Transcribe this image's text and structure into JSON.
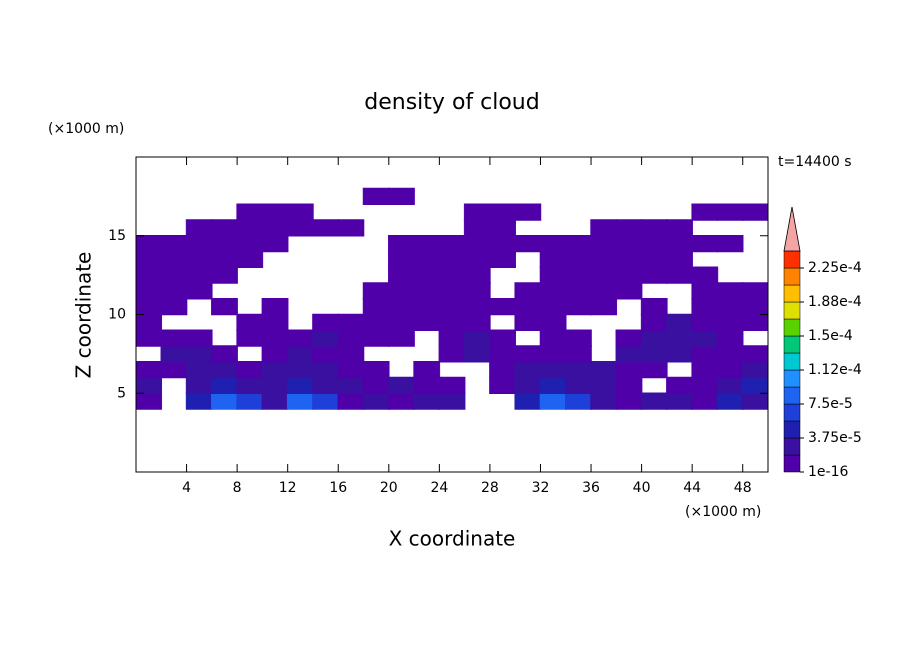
{
  "chart_data": {
    "type": "contour",
    "title": "density of cloud",
    "x_label": "X coordinate",
    "y_label": "Z coordinate",
    "x_unit": "(×1000 m)",
    "y_unit": "(×1000 m)",
    "time_label": "t=14400 s",
    "xlim": [
      0,
      50
    ],
    "ylim": [
      0,
      20
    ],
    "xticks": [
      4,
      8,
      12,
      16,
      20,
      24,
      28,
      32,
      36,
      40,
      44,
      48
    ],
    "yticks": [
      5,
      10,
      15
    ],
    "x": [
      1,
      3,
      5,
      7,
      9,
      11,
      13,
      15,
      17,
      19,
      21,
      23,
      25,
      27,
      29,
      31,
      33,
      35,
      37,
      39,
      41,
      43,
      45,
      47,
      49
    ],
    "z": [
      4.5,
      5.5,
      6.5,
      7.5,
      8.5,
      9.5,
      10.5,
      11.5,
      12.5,
      13.5,
      14.5,
      15.5,
      16.5,
      17.5
    ],
    "values": [
      [
        1e-05,
        null,
        4.5e-05,
        8.5e-05,
        6.5e-05,
        2.5e-05,
        8.5e-05,
        6.5e-05,
        1e-05,
        2.5e-05,
        1e-05,
        2.5e-05,
        2.5e-05,
        null,
        null,
        4.5e-05,
        8.5e-05,
        6.5e-05,
        2.5e-05,
        1e-05,
        2.5e-05,
        2.5e-05,
        1e-05,
        4.5e-05,
        2.5e-05
      ],
      [
        2.5e-05,
        null,
        2.5e-05,
        4.5e-05,
        2.5e-05,
        2.5e-05,
        4.5e-05,
        2.5e-05,
        2.5e-05,
        1e-05,
        2.5e-05,
        1e-05,
        1e-05,
        null,
        1e-05,
        2.5e-05,
        4.5e-05,
        2.5e-05,
        2.5e-05,
        1e-05,
        null,
        1e-05,
        1e-05,
        2.5e-05,
        4.5e-05
      ],
      [
        1e-05,
        1e-05,
        2.5e-05,
        2.5e-05,
        1e-05,
        2.5e-05,
        2.5e-05,
        2.5e-05,
        1e-05,
        1e-05,
        null,
        1e-05,
        null,
        null,
        1e-05,
        2.5e-05,
        2.5e-05,
        2.5e-05,
        2.5e-05,
        1e-05,
        1e-05,
        null,
        1e-05,
        1e-05,
        2.5e-05
      ],
      [
        null,
        2.5e-05,
        2.5e-05,
        1e-05,
        null,
        1e-05,
        2.5e-05,
        1e-05,
        1e-05,
        null,
        null,
        null,
        1e-05,
        2.5e-05,
        1e-05,
        1e-05,
        1e-05,
        1e-05,
        null,
        2.5e-05,
        2.5e-05,
        2.5e-05,
        1e-05,
        1e-05,
        1e-05
      ],
      [
        1e-05,
        1e-05,
        1e-05,
        null,
        1e-05,
        1e-05,
        1e-05,
        2.5e-05,
        1e-05,
        1e-05,
        1e-05,
        null,
        1e-05,
        2.5e-05,
        1e-05,
        null,
        1e-05,
        1e-05,
        null,
        1e-05,
        2.5e-05,
        2.5e-05,
        2.5e-05,
        1e-05,
        null
      ],
      [
        1e-05,
        null,
        null,
        null,
        1e-05,
        1e-05,
        null,
        1e-05,
        1e-05,
        1e-05,
        1e-05,
        1e-05,
        1e-05,
        1e-05,
        null,
        1e-05,
        1e-05,
        null,
        null,
        null,
        1e-05,
        2.5e-05,
        1e-05,
        1e-05,
        1e-05
      ],
      [
        1e-05,
        1e-05,
        null,
        1e-05,
        null,
        1e-05,
        null,
        null,
        null,
        1e-05,
        1e-05,
        1e-05,
        1e-05,
        1e-05,
        1e-05,
        1e-05,
        1e-05,
        1e-05,
        1e-05,
        null,
        1e-05,
        null,
        1e-05,
        1e-05,
        1e-05
      ],
      [
        1e-05,
        1e-05,
        1e-05,
        null,
        null,
        null,
        null,
        null,
        null,
        1e-05,
        1e-05,
        1e-05,
        1e-05,
        1e-05,
        null,
        1e-05,
        1e-05,
        1e-05,
        1e-05,
        1e-05,
        null,
        null,
        1e-05,
        1e-05,
        1e-05
      ],
      [
        1e-05,
        1e-05,
        1e-05,
        1e-05,
        null,
        null,
        null,
        null,
        null,
        null,
        1e-05,
        1e-05,
        1e-05,
        1e-05,
        null,
        null,
        1e-05,
        1e-05,
        1e-05,
        1e-05,
        1e-05,
        1e-05,
        1e-05,
        null,
        null
      ],
      [
        1e-05,
        1e-05,
        1e-05,
        1e-05,
        1e-05,
        null,
        null,
        null,
        null,
        null,
        1e-05,
        1e-05,
        1e-05,
        1e-05,
        1e-05,
        null,
        1e-05,
        1e-05,
        1e-05,
        1e-05,
        1e-05,
        1e-05,
        null,
        null,
        null
      ],
      [
        1e-05,
        1e-05,
        1e-05,
        1e-05,
        1e-05,
        1e-05,
        null,
        null,
        null,
        null,
        1e-05,
        1e-05,
        1e-05,
        1e-05,
        1e-05,
        1e-05,
        1e-05,
        1e-05,
        1e-05,
        1e-05,
        1e-05,
        1e-05,
        1e-05,
        1e-05,
        null
      ],
      [
        null,
        null,
        1e-05,
        1e-05,
        1e-05,
        1e-05,
        1e-05,
        1e-05,
        1e-05,
        null,
        null,
        null,
        null,
        1e-05,
        1e-05,
        null,
        null,
        null,
        1e-05,
        1e-05,
        1e-05,
        1e-05,
        null,
        null,
        null
      ],
      [
        null,
        null,
        null,
        null,
        1e-05,
        1e-05,
        1e-05,
        null,
        null,
        null,
        null,
        null,
        null,
        1e-05,
        1e-05,
        1e-05,
        null,
        null,
        null,
        null,
        null,
        null,
        1e-05,
        1e-05,
        1e-05
      ],
      [
        null,
        null,
        null,
        null,
        null,
        null,
        null,
        null,
        null,
        1e-05,
        1e-05,
        null,
        null,
        null,
        null,
        null,
        null,
        null,
        null,
        null,
        null,
        null,
        null,
        null,
        null
      ]
    ],
    "levels": [
      1e-16,
      1.875e-05,
      3.75e-05,
      5.625e-05,
      7.5e-05,
      9.375e-05,
      0.0001125,
      0.00013125,
      0.00015,
      0.00016875,
      0.0001875,
      0.00020625,
      0.000225,
      0.00024375
    ],
    "colors": [
      "#5000a8",
      "#3a10a0",
      "#2020b0",
      "#1e40d8",
      "#1e64f0",
      "#1e90ff",
      "#00c8d0",
      "#00c878",
      "#5ad200",
      "#e0e000",
      "#ffbe00",
      "#ff8200",
      "#ff3000"
    ],
    "extend_color": "#f4a4a4",
    "colorbar_ticks": [
      {
        "value": 1e-16,
        "label": "1e-16"
      },
      {
        "value": 3.75e-05,
        "label": "3.75e-5"
      },
      {
        "value": 7.5e-05,
        "label": "7.5e-5"
      },
      {
        "value": 0.0001125,
        "label": "1.12e-4"
      },
      {
        "value": 0.00015,
        "label": "1.5e-4"
      },
      {
        "value": 0.0001875,
        "label": "1.88e-4"
      },
      {
        "value": 0.000225,
        "label": "2.25e-4"
      }
    ]
  }
}
